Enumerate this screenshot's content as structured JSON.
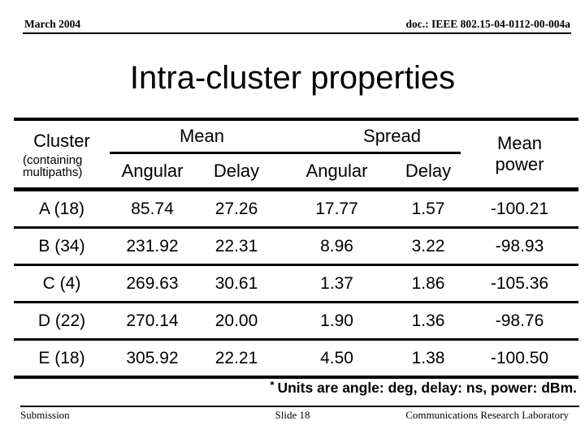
{
  "slide": {
    "header": {
      "date": "March 2004",
      "doc_number": "doc.: IEEE 802.15-04-0112-00-004a"
    },
    "title": "Intra-cluster properties",
    "table": {
      "header": {
        "cluster": "Cluster",
        "cluster_sub": "(containing multipaths)",
        "mean_group": "Mean",
        "spread_group": "Spread",
        "power": "Mean power",
        "mean_angular": "Angular",
        "mean_delay": "Delay",
        "spread_angular": "Angular",
        "spread_delay": "Delay"
      },
      "rows": [
        {
          "cluster": "A (18)",
          "mean_angular": "85.74",
          "mean_delay": "27.26",
          "spread_angular": "17.77",
          "spread_delay": "1.57",
          "mean_power": "-100.21"
        },
        {
          "cluster": "B (34)",
          "mean_angular": "231.92",
          "mean_delay": "22.31",
          "spread_angular": "8.96",
          "spread_delay": "3.22",
          "mean_power": "-98.93"
        },
        {
          "cluster": "C (4)",
          "mean_angular": "269.63",
          "mean_delay": "30.61",
          "spread_angular": "1.37",
          "spread_delay": "1.86",
          "mean_power": "-105.36"
        },
        {
          "cluster": "D (22)",
          "mean_angular": "270.14",
          "mean_delay": "20.00",
          "spread_angular": "1.90",
          "spread_delay": "1.36",
          "mean_power": "-98.76"
        },
        {
          "cluster": "E (18)",
          "mean_angular": "305.92",
          "mean_delay": "22.21",
          "spread_angular": "4.50",
          "spread_delay": "1.38",
          "mean_power": "-100.50"
        }
      ]
    },
    "footnote": {
      "marker": "*",
      "text": "Units are angle: deg, delay: ns, power: dBm."
    },
    "footer": {
      "left": "Submission",
      "center": "Slide 18",
      "right": "Communications Research Laboratory"
    }
  },
  "colors": {
    "text": "#000000",
    "background": "#ffffff",
    "line": "#000000"
  }
}
